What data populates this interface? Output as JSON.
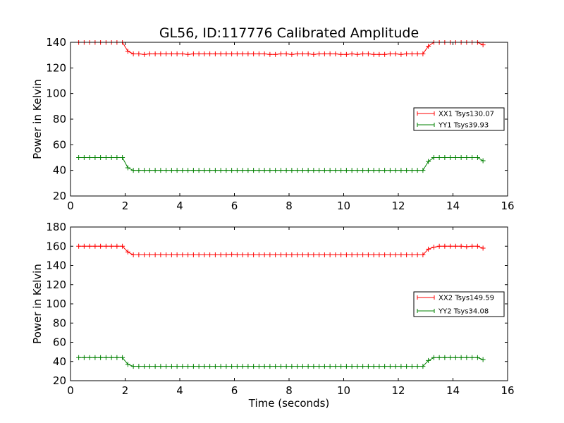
{
  "title": "GL56, ID:117776 Calibrated Amplitude",
  "chart_data": [
    {
      "type": "line",
      "title": "GL56, ID:117776 Calibrated Amplitude",
      "xlabel": "",
      "ylabel": "Power in Kelvin",
      "xlim": [
        0,
        16
      ],
      "ylim": [
        20,
        140
      ],
      "xticks": [
        0,
        2,
        4,
        6,
        8,
        10,
        12,
        14,
        16
      ],
      "yticks": [
        20,
        40,
        60,
        80,
        100,
        120,
        140
      ],
      "grid": false,
      "legend_position": "center-right",
      "series": [
        {
          "name": "XX1 Tsys130.07",
          "color": "#ff0000",
          "marker": "plus",
          "x": [
            0.3,
            0.5,
            0.7,
            0.9,
            1.1,
            1.3,
            1.5,
            1.7,
            1.9,
            2.1,
            2.3,
            2.5,
            2.7,
            2.9,
            3.1,
            3.3,
            3.5,
            3.7,
            3.9,
            4.1,
            4.3,
            4.5,
            4.7,
            4.9,
            5.1,
            5.3,
            5.5,
            5.7,
            5.9,
            6.1,
            6.3,
            6.5,
            6.7,
            6.9,
            7.1,
            7.3,
            7.5,
            7.7,
            7.9,
            8.1,
            8.3,
            8.5,
            8.7,
            8.9,
            9.1,
            9.3,
            9.5,
            9.7,
            9.9,
            10.1,
            10.3,
            10.5,
            10.7,
            10.9,
            11.1,
            11.3,
            11.5,
            11.7,
            11.9,
            12.1,
            12.3,
            12.5,
            12.7,
            12.9,
            13.1,
            13.3,
            13.5,
            13.7,
            13.9,
            14.1,
            14.3,
            14.5,
            14.7,
            14.9,
            15.1
          ],
          "y": [
            140,
            140,
            140,
            140,
            140,
            140,
            140,
            140,
            140,
            133,
            131,
            131,
            130.5,
            131,
            131,
            131,
            131,
            131,
            131,
            131,
            130.5,
            131,
            131,
            131,
            131,
            131,
            131,
            131,
            131,
            131,
            131,
            131,
            131,
            131,
            131,
            130.5,
            130.5,
            131,
            131,
            130.5,
            131,
            131,
            131,
            130.5,
            131,
            131,
            131,
            131,
            130.5,
            130.5,
            131,
            130.5,
            131,
            131,
            130.5,
            130.5,
            130.5,
            131,
            131,
            130.5,
            131,
            131,
            131,
            131,
            137,
            140,
            140,
            140,
            140,
            140,
            140,
            140,
            140,
            140,
            138
          ]
        },
        {
          "name": "YY1 Tsys39.93",
          "color": "#008000",
          "marker": "plus",
          "x": [
            0.3,
            0.5,
            0.7,
            0.9,
            1.1,
            1.3,
            1.5,
            1.7,
            1.9,
            2.1,
            2.3,
            2.5,
            2.7,
            2.9,
            3.1,
            3.3,
            3.5,
            3.7,
            3.9,
            4.1,
            4.3,
            4.5,
            4.7,
            4.9,
            5.1,
            5.3,
            5.5,
            5.7,
            5.9,
            6.1,
            6.3,
            6.5,
            6.7,
            6.9,
            7.1,
            7.3,
            7.5,
            7.7,
            7.9,
            8.1,
            8.3,
            8.5,
            8.7,
            8.9,
            9.1,
            9.3,
            9.5,
            9.7,
            9.9,
            10.1,
            10.3,
            10.5,
            10.7,
            10.9,
            11.1,
            11.3,
            11.5,
            11.7,
            11.9,
            12.1,
            12.3,
            12.5,
            12.7,
            12.9,
            13.1,
            13.3,
            13.5,
            13.7,
            13.9,
            14.1,
            14.3,
            14.5,
            14.7,
            14.9,
            15.1
          ],
          "y": [
            50,
            50,
            50,
            50,
            50,
            50,
            50,
            50,
            50,
            42,
            40,
            40,
            40,
            40,
            40,
            40,
            40,
            40,
            40,
            40,
            40,
            40,
            40,
            40,
            40,
            40,
            40,
            40,
            40,
            40,
            40,
            40,
            40,
            40,
            40,
            40,
            40,
            40,
            40,
            40,
            40,
            40,
            40,
            40,
            40,
            40,
            40,
            40,
            40,
            40,
            40,
            40,
            40,
            40,
            40,
            40,
            40,
            40,
            40,
            40,
            40,
            40,
            40,
            40,
            47,
            50,
            50,
            50,
            50,
            50,
            50,
            50,
            50,
            50,
            47.5
          ]
        }
      ]
    },
    {
      "type": "line",
      "title": "",
      "xlabel": "Time (seconds)",
      "ylabel": "Power in Kelvin",
      "xlim": [
        0,
        16
      ],
      "ylim": [
        20,
        180
      ],
      "xticks": [
        0,
        2,
        4,
        6,
        8,
        10,
        12,
        14,
        16
      ],
      "yticks": [
        20,
        40,
        60,
        80,
        100,
        120,
        140,
        160,
        180
      ],
      "grid": false,
      "legend_position": "center-right",
      "series": [
        {
          "name": "XX2 Tsys149.59",
          "color": "#ff0000",
          "marker": "plus",
          "x": [
            0.3,
            0.5,
            0.7,
            0.9,
            1.1,
            1.3,
            1.5,
            1.7,
            1.9,
            2.1,
            2.3,
            2.5,
            2.7,
            2.9,
            3.1,
            3.3,
            3.5,
            3.7,
            3.9,
            4.1,
            4.3,
            4.5,
            4.7,
            4.9,
            5.1,
            5.3,
            5.5,
            5.7,
            5.9,
            6.1,
            6.3,
            6.5,
            6.7,
            6.9,
            7.1,
            7.3,
            7.5,
            7.7,
            7.9,
            8.1,
            8.3,
            8.5,
            8.7,
            8.9,
            9.1,
            9.3,
            9.5,
            9.7,
            9.9,
            10.1,
            10.3,
            10.5,
            10.7,
            10.9,
            11.1,
            11.3,
            11.5,
            11.7,
            11.9,
            12.1,
            12.3,
            12.5,
            12.7,
            12.9,
            13.1,
            13.3,
            13.5,
            13.7,
            13.9,
            14.1,
            14.3,
            14.5,
            14.7,
            14.9,
            15.1
          ],
          "y": [
            160,
            160,
            160,
            160,
            160,
            160,
            160,
            160,
            160,
            154,
            151,
            151,
            151,
            151,
            151,
            151,
            151,
            151,
            151,
            151,
            151,
            151,
            151,
            151,
            151,
            151,
            151,
            151,
            151.5,
            151,
            151,
            151,
            151,
            151,
            151,
            151,
            151,
            151,
            151,
            151,
            151,
            151,
            151,
            151,
            151,
            151,
            151,
            151,
            151,
            151,
            151,
            151,
            151,
            151,
            151,
            151,
            151,
            151,
            151,
            151,
            151,
            151,
            151,
            151,
            157,
            159,
            160,
            160,
            160,
            160,
            160,
            159.5,
            160,
            160,
            158
          ]
        },
        {
          "name": "YY2 Tsys34.08",
          "color": "#008000",
          "marker": "plus",
          "x": [
            0.3,
            0.5,
            0.7,
            0.9,
            1.1,
            1.3,
            1.5,
            1.7,
            1.9,
            2.1,
            2.3,
            2.5,
            2.7,
            2.9,
            3.1,
            3.3,
            3.5,
            3.7,
            3.9,
            4.1,
            4.3,
            4.5,
            4.7,
            4.9,
            5.1,
            5.3,
            5.5,
            5.7,
            5.9,
            6.1,
            6.3,
            6.5,
            6.7,
            6.9,
            7.1,
            7.3,
            7.5,
            7.7,
            7.9,
            8.1,
            8.3,
            8.5,
            8.7,
            8.9,
            9.1,
            9.3,
            9.5,
            9.7,
            9.9,
            10.1,
            10.3,
            10.5,
            10.7,
            10.9,
            11.1,
            11.3,
            11.5,
            11.7,
            11.9,
            12.1,
            12.3,
            12.5,
            12.7,
            12.9,
            13.1,
            13.3,
            13.5,
            13.7,
            13.9,
            14.1,
            14.3,
            14.5,
            14.7,
            14.9,
            15.1
          ],
          "y": [
            44,
            44,
            44,
            44,
            44,
            44,
            44,
            44,
            44,
            37,
            35,
            35,
            35,
            35,
            35,
            35,
            35,
            35,
            35,
            35,
            35,
            35,
            35,
            35,
            35,
            35,
            35,
            35,
            35,
            35,
            35,
            35,
            35,
            35,
            35,
            35,
            35,
            35,
            35,
            35,
            35,
            35,
            35,
            35,
            35,
            35,
            35,
            35,
            35,
            35,
            35,
            35,
            35,
            35,
            35,
            35,
            35,
            35,
            35,
            35,
            35,
            35,
            35,
            35,
            41,
            44,
            44,
            44,
            44,
            44,
            44,
            44,
            44,
            44,
            42
          ]
        }
      ]
    }
  ]
}
